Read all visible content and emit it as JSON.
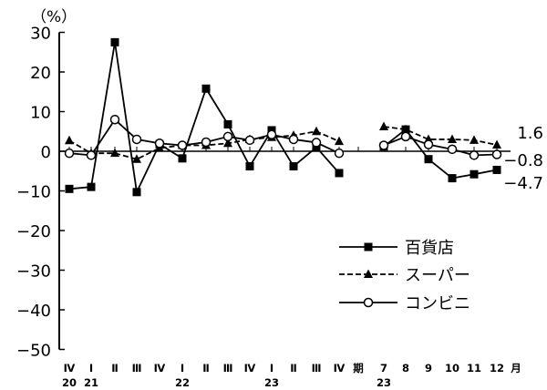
{
  "chart_data": {
    "type": "line",
    "unit_label": "（%）",
    "ylim": [
      -50,
      30
    ],
    "yticks": [
      30,
      20,
      10,
      0,
      -10,
      -20,
      -30,
      -40,
      -50
    ],
    "ytick_labels": [
      "30",
      "20",
      "10",
      "0",
      "−10",
      "−20",
      "−30",
      "−40",
      "−50"
    ],
    "x_labels": [
      "Ⅳ",
      "Ⅰ",
      "Ⅱ",
      "Ⅲ",
      "Ⅳ",
      "Ⅰ",
      "Ⅱ",
      "Ⅲ",
      "Ⅳ",
      "Ⅰ",
      "Ⅱ",
      "Ⅲ",
      "Ⅳ",
      "期",
      "7",
      "8",
      "9",
      "10",
      "11",
      "12",
      "月"
    ],
    "year_labels": [
      {
        "text": "20",
        "index": 0
      },
      {
        "text": "21",
        "index": 1
      },
      {
        "text": "22",
        "index": 5
      },
      {
        "text": "23",
        "index": 9
      },
      {
        "text": "23",
        "index": 14
      }
    ],
    "grid": false,
    "legend_position": "bottom-right",
    "series": [
      {
        "name": "百貨店",
        "marker": "square-filled",
        "dash": "solid",
        "values": [
          -9.5,
          -9.0,
          27.5,
          -10.3,
          1.8,
          -1.8,
          15.8,
          6.8,
          -3.8,
          5.3,
          -3.8,
          1.0,
          -5.5,
          null,
          1.2,
          5.5,
          -2.0,
          -6.8,
          -5.8,
          -4.7
        ]
      },
      {
        "name": "スーパー",
        "marker": "triangle-filled",
        "dash": "dashed",
        "values": [
          2.7,
          -0.5,
          -0.5,
          -2.0,
          0.8,
          1.5,
          1.5,
          2.0,
          3.0,
          3.5,
          4.0,
          5.0,
          2.5,
          null,
          6.2,
          5.5,
          3.0,
          3.0,
          2.8,
          1.6
        ]
      },
      {
        "name": "コンビニ",
        "marker": "circle-open",
        "dash": "solid",
        "values": [
          -0.5,
          -1.0,
          8.0,
          3.0,
          2.0,
          1.5,
          2.3,
          3.7,
          2.8,
          4.2,
          3.0,
          2.2,
          -0.5,
          null,
          1.5,
          3.7,
          1.7,
          0.5,
          -1.0,
          -0.8
        ]
      }
    ],
    "end_labels": [
      "1.6",
      "−0.8",
      "−4.7"
    ]
  }
}
